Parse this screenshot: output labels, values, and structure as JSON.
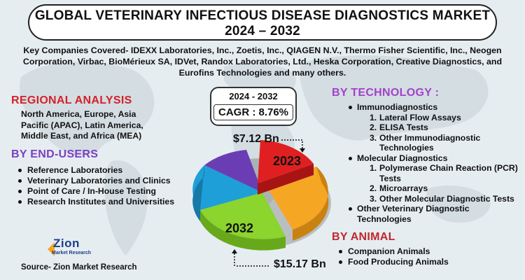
{
  "title": {
    "line1": "GLOBAL VETERINARY INFECTIOUS DISEASE DIAGNOSTICS MARKET",
    "line2": "2024 – 2032"
  },
  "companies": "Key Companies Covered- IDEXX Laboratories, Inc., Zoetis, Inc., QIAGEN N.V., Thermo Fisher Scientific, Inc., Neogen Corporation, Virbac, BioMérieux SA, IDVet, Randox Laboratories, Ltd., Heska Corporation, Creative Diagnostics, and Eurofins Technologies and many others.",
  "regional": {
    "title": "REGIONAL ANALYSIS",
    "text": "North America, Europe, Asia Pacific (APAC), Latin America, Middle East, and Africa (MEA)"
  },
  "end_users": {
    "title": "BY END-USERS",
    "items": [
      "Reference Laboratories",
      "Veterinary Laboratories and Clinics",
      "Point of Care / In-House Testing",
      "Research Institutes and Universities"
    ]
  },
  "technology": {
    "title": "BY TECHNOLOGY :",
    "immuno": "Immunodiagnostics",
    "immuno_items": [
      "Lateral Flow Assays",
      "ELISA Tests",
      "Other Immunodiagnostic Technologies"
    ],
    "molecular": "Molecular Diagnostics",
    "molecular_items": [
      "Polymerase Chain Reaction (PCR) Tests",
      "Microarrays",
      "Other Molecular Diagnostic Tests"
    ],
    "other": "Other Veterinary Diagnostic Technologies",
    "nums": [
      "1.",
      "2.",
      "3."
    ]
  },
  "animal": {
    "title": "BY ANIMAL",
    "items": [
      "Companion Animals",
      "Food Producing Animals"
    ]
  },
  "cagr": {
    "years": "2024 - 2032",
    "value": "CAGR : 8.76%"
  },
  "market": {
    "value_2023": "$7.12 Bn",
    "value_2032": "$15.17 Bn",
    "label_2023": "2023",
    "label_2032": "2032"
  },
  "logo": {
    "name": "Zion",
    "sub": "Market Research"
  },
  "source": "Source- Zion Market Research",
  "colors": {
    "red_slice": "#e02020",
    "orange_slice": "#f5a623",
    "green_slice": "#8cd42e",
    "blue_slice": "#1e9fd8",
    "purple_slice": "#6a3db5",
    "regional_title": "#d6202a",
    "enduser_title": "#7b3fc4",
    "tech_title": "#a341c9",
    "animal_title": "#c1272d"
  }
}
